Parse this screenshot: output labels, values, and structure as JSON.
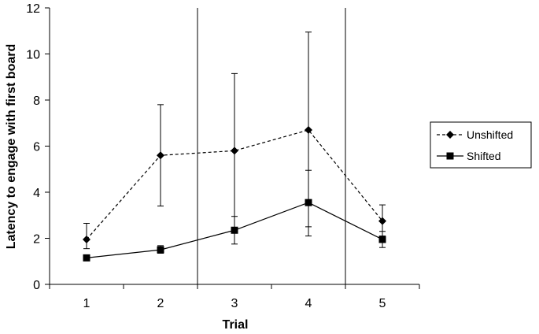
{
  "chart_data": {
    "type": "line",
    "title": "",
    "xlabel": "Trial",
    "ylabel": "Latency to engage with first board",
    "categories": [
      "1",
      "2",
      "3",
      "4",
      "5"
    ],
    "ylim": [
      0,
      12
    ],
    "yticks": [
      0,
      2,
      4,
      6,
      8,
      10,
      12
    ],
    "yticklabels": [
      "0",
      "2",
      "4",
      "6",
      "8",
      "10",
      "12"
    ],
    "grid": false,
    "legend_position": "right",
    "vertical_separators_after_categories": [
      "2",
      "4"
    ],
    "series": [
      {
        "name": "Unshifted",
        "marker": "diamond",
        "line_style": "dashed",
        "color": "#000000",
        "values": [
          1.95,
          5.6,
          5.8,
          6.7,
          2.75
        ],
        "error_low": [
          1.55,
          3.4,
          2.45,
          2.1,
          2.1
        ],
        "error_high": [
          2.65,
          7.8,
          9.15,
          10.95,
          3.45
        ]
      },
      {
        "name": "Shifted",
        "marker": "square",
        "line_style": "solid",
        "color": "#000000",
        "values": [
          1.15,
          1.5,
          2.35,
          3.55,
          1.95
        ],
        "error_low": [
          1.1,
          1.35,
          1.75,
          2.5,
          1.6
        ],
        "error_high": [
          1.2,
          1.68,
          2.95,
          4.95,
          2.3
        ]
      }
    ]
  }
}
